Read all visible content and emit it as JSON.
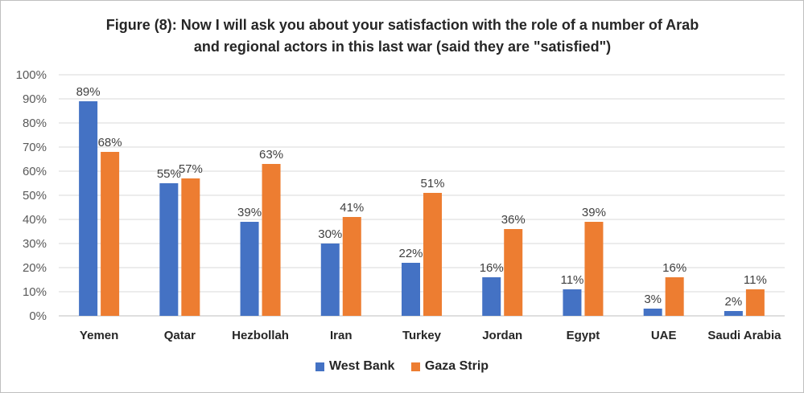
{
  "chart_data": {
    "type": "bar",
    "title_line1": "Figure (8): Now I will ask you about your satisfaction with the role of a number of Arab",
    "title_line2": "and regional actors in this last war (said they are \"satisfied\")",
    "categories": [
      "Yemen",
      "Qatar",
      "Hezbollah",
      "Iran",
      "Turkey",
      "Jordan",
      "Egypt",
      "UAE",
      "Saudi Arabia"
    ],
    "series": [
      {
        "name": "West Bank",
        "color": "#4472c4",
        "values": [
          89,
          55,
          39,
          30,
          22,
          16,
          11,
          3,
          2
        ]
      },
      {
        "name": "Gaza Strip",
        "color": "#ed7d31",
        "values": [
          68,
          57,
          63,
          41,
          51,
          36,
          39,
          16,
          11
        ]
      }
    ],
    "ylim": [
      0,
      100
    ],
    "yticks": [
      "0%",
      "10%",
      "20%",
      "30%",
      "40%",
      "50%",
      "60%",
      "70%",
      "80%",
      "90%",
      "100%"
    ],
    "value_suffix": "%",
    "grid": true,
    "legend_position": "bottom"
  }
}
